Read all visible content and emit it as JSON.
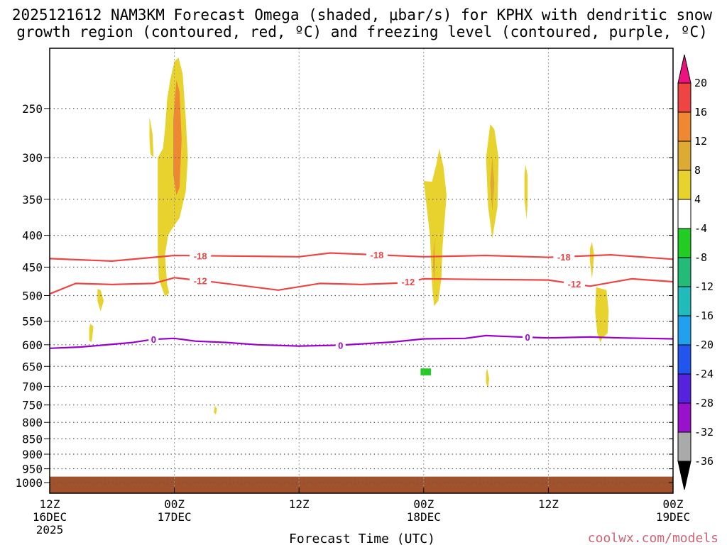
{
  "title": {
    "line1": "2025121612 NAM3KM Forecast Omega (shaded, μbar/s) for KPHX with dendritic snow",
    "line2": "growth region (contoured, red, ºC) and freezing level (contoured, purple, ºC)"
  },
  "credit": "coolwx.com/models",
  "colors": {
    "snow_contour": "#ee4444",
    "freezing_contour": "#9900cc",
    "ground": "#a0522d",
    "grid": "#555555"
  },
  "chart_data": {
    "type": "heatmap",
    "xlabel": "Forecast Time (UTC)",
    "ylabel": "",
    "x_ticks": [
      {
        "hours": 0,
        "label1": "12Z",
        "label2": "16DEC",
        "label3": "2025"
      },
      {
        "hours": 12,
        "label1": "00Z",
        "label2": "17DEC",
        "label3": ""
      },
      {
        "hours": 24,
        "label1": "12Z",
        "label2": "",
        "label3": ""
      },
      {
        "hours": 36,
        "label1": "00Z",
        "label2": "18DEC",
        "label3": ""
      },
      {
        "hours": 48,
        "label1": "12Z",
        "label2": "",
        "label3": ""
      },
      {
        "hours": 60,
        "label1": "00Z",
        "label2": "19DEC",
        "label3": ""
      }
    ],
    "xlim": [
      0,
      60
    ],
    "y_ticks": [
      250,
      300,
      350,
      400,
      450,
      500,
      550,
      600,
      650,
      700,
      750,
      800,
      850,
      900,
      950,
      1000
    ],
    "ylim_hpa": [
      1040,
      200
    ],
    "y_scale": "log",
    "grid": true,
    "colorbar": {
      "labels": [
        "20",
        "16",
        "12",
        "8",
        "4",
        "-4",
        "-8",
        "-12",
        "-16",
        "-20",
        "-24",
        "-28",
        "-32",
        "-36"
      ],
      "colors": [
        "#ee1180",
        "#ee4444",
        "#ee8833",
        "#ddaa33",
        "#e8d22e",
        "#ffffff",
        "#22cc22",
        "#22bb77",
        "#22bbbb",
        "#22a0ee",
        "#2255ee",
        "#5522dd",
        "#9911cc",
        "#aaaaaa",
        "#000000"
      ]
    },
    "contours": [
      {
        "name": "-18",
        "color": "#ee4444",
        "points": [
          [
            0,
            436
          ],
          [
            6,
            440
          ],
          [
            12,
            431
          ],
          [
            24,
            433
          ],
          [
            27,
            427
          ],
          [
            36,
            433
          ],
          [
            42,
            431
          ],
          [
            48,
            434
          ],
          [
            54,
            430
          ],
          [
            60,
            437
          ]
        ],
        "labels": [
          {
            "hours": 14.5,
            "text": "-18"
          },
          {
            "hours": 31.5,
            "text": "-18"
          },
          {
            "hours": 49.5,
            "text": "-18"
          }
        ]
      },
      {
        "name": "-12",
        "color": "#ee4444",
        "points": [
          [
            0,
            497
          ],
          [
            2.5,
            478
          ],
          [
            6,
            480
          ],
          [
            10,
            478
          ],
          [
            12,
            468
          ],
          [
            16,
            476
          ],
          [
            22,
            490
          ],
          [
            26,
            478
          ],
          [
            30,
            480
          ],
          [
            34,
            477
          ],
          [
            36,
            470
          ],
          [
            42,
            471
          ],
          [
            48,
            472
          ],
          [
            52,
            483
          ],
          [
            56,
            470
          ],
          [
            60,
            475
          ]
        ],
        "labels": [
          {
            "hours": 14.5,
            "text": "-12"
          },
          {
            "hours": 34.5,
            "text": "-12"
          },
          {
            "hours": 50.5,
            "text": "-12"
          }
        ]
      },
      {
        "name": "0",
        "color": "#9900cc",
        "points": [
          [
            0,
            608
          ],
          [
            3,
            605
          ],
          [
            8,
            595
          ],
          [
            10,
            588
          ],
          [
            12,
            586
          ],
          [
            14,
            592
          ],
          [
            17,
            595
          ],
          [
            20,
            600
          ],
          [
            24,
            603
          ],
          [
            28,
            601
          ],
          [
            33,
            594
          ],
          [
            36,
            587
          ],
          [
            40,
            586
          ],
          [
            42,
            580
          ],
          [
            44,
            582
          ],
          [
            48,
            585
          ],
          [
            52,
            583
          ],
          [
            55,
            585
          ],
          [
            60,
            587
          ]
        ],
        "labels": [
          {
            "hours": 10,
            "text": "0"
          },
          {
            "hours": 28,
            "text": "0"
          },
          {
            "hours": 46,
            "text": "0"
          }
        ]
      }
    ],
    "omega_regions": [
      {
        "level": 4,
        "points": [
          [
            9.6,
            258
          ],
          [
            9.9,
            275
          ],
          [
            10.0,
            300
          ],
          [
            9.7,
            296
          ],
          [
            9.6,
            278
          ]
        ]
      },
      {
        "level": 4,
        "points": [
          [
            10.4,
            300
          ],
          [
            10.9,
            290
          ],
          [
            11.1,
            270
          ],
          [
            11.3,
            242
          ],
          [
            11.6,
            225
          ],
          [
            12.0,
            210
          ],
          [
            12.4,
            207
          ],
          [
            12.8,
            220
          ],
          [
            13.1,
            260
          ],
          [
            13.3,
            300
          ],
          [
            13.1,
            340
          ],
          [
            12.5,
            375
          ],
          [
            11.8,
            390
          ],
          [
            11.4,
            400
          ],
          [
            11.1,
            430
          ],
          [
            11.3,
            480
          ],
          [
            11.5,
            495
          ],
          [
            11.1,
            502
          ],
          [
            10.5,
            470
          ],
          [
            10.4,
            420
          ],
          [
            10.4,
            340
          ]
        ]
      },
      {
        "level": 12,
        "points": [
          [
            12.2,
            225
          ],
          [
            12.5,
            235
          ],
          [
            12.7,
            280
          ],
          [
            12.5,
            335
          ],
          [
            12.2,
            345
          ],
          [
            11.9,
            320
          ],
          [
            11.9,
            260
          ]
        ]
      },
      {
        "level": 4,
        "points": [
          [
            4.6,
            488
          ],
          [
            4.9,
            490
          ],
          [
            5.2,
            510
          ],
          [
            4.9,
            530
          ],
          [
            4.6,
            510
          ]
        ]
      },
      {
        "level": 4,
        "points": [
          [
            3.9,
            555
          ],
          [
            4.2,
            560
          ],
          [
            4.1,
            585
          ],
          [
            4.0,
            595
          ],
          [
            3.8,
            590
          ],
          [
            3.8,
            565
          ]
        ]
      },
      {
        "level": 4,
        "points": [
          [
            15.9,
            752
          ],
          [
            16.1,
            760
          ],
          [
            16.0,
            778
          ],
          [
            15.8,
            770
          ]
        ]
      },
      {
        "level": 4,
        "points": [
          [
            36.0,
            327
          ],
          [
            36.8,
            328
          ],
          [
            37.2,
            308
          ],
          [
            37.5,
            290
          ],
          [
            37.9,
            310
          ],
          [
            38.2,
            345
          ],
          [
            38.0,
            380
          ],
          [
            37.8,
            420
          ],
          [
            37.7,
            470
          ],
          [
            37.4,
            510
          ],
          [
            37.0,
            520
          ],
          [
            36.8,
            480
          ],
          [
            36.6,
            400
          ],
          [
            36.2,
            350
          ]
        ]
      },
      {
        "level": 8,
        "points": [
          [
            37.0,
            405
          ],
          [
            37.1,
            440
          ],
          [
            37.0,
            480
          ],
          [
            36.9,
            440
          ]
        ]
      },
      {
        "level": 4,
        "points": [
          [
            42.4,
            265
          ],
          [
            42.8,
            270
          ],
          [
            43.2,
            300
          ],
          [
            43.1,
            360
          ],
          [
            42.6,
            405
          ],
          [
            42.2,
            360
          ],
          [
            42.0,
            300
          ]
        ]
      },
      {
        "level": 8,
        "points": [
          [
            42.6,
            300
          ],
          [
            42.8,
            330
          ],
          [
            42.6,
            365
          ],
          [
            42.4,
            330
          ]
        ]
      },
      {
        "level": 4,
        "points": [
          [
            45.8,
            308
          ],
          [
            46.0,
            320
          ],
          [
            46.0,
            355
          ],
          [
            45.9,
            377
          ],
          [
            45.7,
            350
          ],
          [
            45.7,
            320
          ]
        ]
      },
      {
        "level": 4,
        "points": [
          [
            52.2,
            410
          ],
          [
            52.4,
            430
          ],
          [
            52.2,
            470
          ],
          [
            52.0,
            440
          ],
          [
            52.0,
            420
          ]
        ]
      },
      {
        "level": 4,
        "points": [
          [
            52.6,
            485
          ],
          [
            53.6,
            490
          ],
          [
            53.8,
            530
          ],
          [
            53.7,
            575
          ],
          [
            53.2,
            585
          ],
          [
            53.0,
            595
          ],
          [
            52.7,
            575
          ],
          [
            52.5,
            530
          ]
        ]
      },
      {
        "level": 4,
        "points": [
          [
            42.1,
            655
          ],
          [
            42.3,
            680
          ],
          [
            42.2,
            705
          ],
          [
            42.0,
            690
          ],
          [
            42.0,
            665
          ]
        ]
      },
      {
        "level": -8,
        "points": [
          [
            35.7,
            655
          ],
          [
            36.7,
            655
          ],
          [
            36.7,
            672
          ],
          [
            35.7,
            672
          ]
        ]
      }
    ],
    "ground": {
      "surface_hpa": 978,
      "bottom_hpa": 1040
    }
  }
}
